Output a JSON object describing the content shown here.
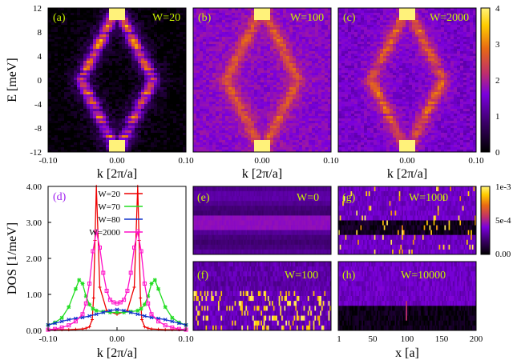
{
  "colors": {
    "panel_label": "#c8f000",
    "label_d": "#a020f0",
    "series": [
      "#ee0000",
      "#22dd22",
      "#1133cc",
      "#ff10c8"
    ],
    "cmap": [
      "#000000",
      "#3a0066",
      "#7a00dd",
      "#c02f6a",
      "#e86a14",
      "#ffcc00",
      "#fff27a"
    ]
  },
  "chart_data": [
    {
      "type": "heatmap",
      "panel": "(a)",
      "annotation": "W=20",
      "xlabel": "k [2π/a]",
      "ylabel": "E [meV]",
      "xlim": [
        -0.1,
        0.1
      ],
      "ylim": [
        -12,
        12
      ],
      "xticks": [
        "-0.10",
        "0.00",
        "0.10"
      ],
      "yticks": [
        "12",
        "8",
        "4",
        "0",
        "-4",
        "-8",
        "-12"
      ]
    },
    {
      "type": "heatmap",
      "panel": "(b)",
      "annotation": "W=100",
      "xlabel": "k [2π/a]",
      "xlim": [
        -0.1,
        0.1
      ],
      "ylim": [
        -12,
        12
      ],
      "xticks": [
        "0.00",
        "0.10"
      ]
    },
    {
      "type": "heatmap",
      "panel": "(c)",
      "annotation": "W=2000",
      "xlabel": "k [2π/a]",
      "xlim": [
        -0.1,
        0.1
      ],
      "ylim": [
        -12,
        12
      ],
      "xticks": [
        "0.00",
        "0.10"
      ],
      "colorbar": {
        "range": [
          0,
          4
        ],
        "ticks": [
          "4",
          "3",
          "2",
          "1",
          "0"
        ]
      }
    },
    {
      "type": "line",
      "panel": "(d)",
      "xlabel": "k [2π/a]",
      "ylabel": "DOS [1/meV]",
      "xlim": [
        -0.1,
        0.1
      ],
      "ylim": [
        0,
        4
      ],
      "xticks": [
        "-0.10",
        "0.00",
        "0.10"
      ],
      "yticks": [
        "4.00",
        "3.00",
        "2.00",
        "1.00",
        "0.00"
      ],
      "legend_position": "top-left",
      "series": [
        {
          "name": "W=20",
          "x": [
            -0.1,
            -0.09,
            -0.08,
            -0.07,
            -0.06,
            -0.05,
            -0.045,
            -0.04,
            -0.036,
            -0.034,
            -0.032,
            -0.03,
            -0.025,
            -0.015,
            0,
            0.015,
            0.025,
            0.03,
            0.032,
            0.034,
            0.036,
            0.04,
            0.045,
            0.05,
            0.06,
            0.07,
            0.08,
            0.09,
            0.1
          ],
          "y": [
            0.02,
            0.02,
            0.02,
            0.02,
            0.03,
            0.04,
            0.06,
            0.1,
            0.3,
            0.9,
            2.5,
            4.0,
            1.2,
            0.55,
            0.45,
            0.55,
            1.2,
            4.0,
            2.5,
            0.9,
            0.3,
            0.1,
            0.06,
            0.04,
            0.03,
            0.02,
            0.02,
            0.02,
            0.02
          ]
        },
        {
          "name": "W=70",
          "x": [
            -0.1,
            -0.09,
            -0.08,
            -0.07,
            -0.06,
            -0.055,
            -0.05,
            -0.045,
            -0.04,
            -0.035,
            -0.03,
            -0.02,
            -0.01,
            0,
            0.01,
            0.02,
            0.03,
            0.035,
            0.04,
            0.045,
            0.05,
            0.055,
            0.06,
            0.07,
            0.08,
            0.09,
            0.1
          ],
          "y": [
            0.15,
            0.22,
            0.35,
            0.65,
            1.15,
            1.4,
            1.3,
            0.95,
            0.72,
            0.6,
            0.55,
            0.52,
            0.5,
            0.5,
            0.5,
            0.52,
            0.55,
            0.6,
            0.72,
            0.95,
            1.3,
            1.4,
            1.15,
            0.65,
            0.35,
            0.22,
            0.15
          ]
        },
        {
          "name": "W=80",
          "x": [
            -0.1,
            -0.09,
            -0.08,
            -0.07,
            -0.06,
            -0.05,
            -0.04,
            -0.03,
            -0.02,
            -0.01,
            0,
            0.01,
            0.02,
            0.03,
            0.04,
            0.05,
            0.06,
            0.07,
            0.08,
            0.09,
            0.1
          ],
          "y": [
            0.15,
            0.2,
            0.25,
            0.3,
            0.33,
            0.36,
            0.4,
            0.45,
            0.5,
            0.55,
            0.58,
            0.55,
            0.5,
            0.45,
            0.4,
            0.36,
            0.33,
            0.3,
            0.25,
            0.2,
            0.15
          ]
        },
        {
          "name": "W=2000",
          "x": [
            -0.1,
            -0.09,
            -0.08,
            -0.07,
            -0.06,
            -0.05,
            -0.045,
            -0.04,
            -0.035,
            -0.03,
            -0.025,
            -0.02,
            -0.015,
            -0.01,
            -0.005,
            0,
            0.005,
            0.01,
            0.015,
            0.02,
            0.025,
            0.03,
            0.035,
            0.04,
            0.045,
            0.05,
            0.06,
            0.07,
            0.08,
            0.09,
            0.1
          ],
          "y": [
            0.02,
            0.04,
            0.08,
            0.14,
            0.25,
            0.45,
            0.75,
            1.3,
            2.2,
            2.75,
            2.3,
            1.6,
            1.1,
            0.85,
            0.78,
            0.75,
            0.78,
            0.85,
            1.1,
            1.6,
            2.3,
            2.75,
            2.2,
            1.3,
            0.75,
            0.45,
            0.25,
            0.14,
            0.08,
            0.04,
            0.02
          ]
        }
      ]
    },
    {
      "type": "heatmap",
      "panel": "(e)",
      "annotation": "W=0"
    },
    {
      "type": "heatmap",
      "panel": "(g)",
      "annotation": "W=1000",
      "colorbar": {
        "ticks": [
          "1e-3",
          "5e-4",
          "0.00"
        ]
      }
    },
    {
      "type": "heatmap",
      "panel": "(f)",
      "annotation": "W=100"
    },
    {
      "type": "heatmap",
      "panel": "(h)",
      "annotation": "W=10000",
      "xlabel": "x [a]",
      "xlim": [
        1,
        200
      ],
      "xticks": [
        "1",
        "50",
        "100",
        "150",
        "200"
      ]
    }
  ]
}
